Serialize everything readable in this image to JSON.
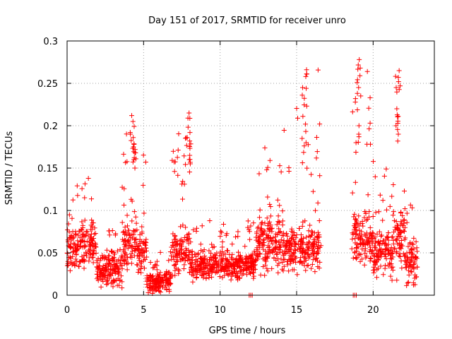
{
  "chart_data": {
    "type": "scatter",
    "title": "Day 151 of 2017, SRMTID for receiver unro",
    "xlabel": "GPS time / hours",
    "ylabel": "SRMTID / TECUs",
    "xlim": [
      0,
      24
    ],
    "ylim": [
      0,
      0.3
    ],
    "x_ticks": [
      0,
      5,
      10,
      15,
      20
    ],
    "x_tick_labels": [
      "0",
      "5",
      "10",
      "15",
      "20"
    ],
    "y_ticks": [
      0,
      0.05,
      0.1,
      0.15,
      0.2,
      0.25,
      0.3
    ],
    "y_tick_labels": [
      "0",
      "0.05",
      "0.1",
      "0.15",
      "0.2",
      "0.25",
      "0.3"
    ],
    "grid": true,
    "marker": "+",
    "color": "#ff0000",
    "series": [
      {
        "name": "SRMTID",
        "segments": [
          {
            "x_start": 0.0,
            "x_end": 0.9,
            "base": 0.055,
            "spread": 0.035,
            "max": 0.148
          },
          {
            "x_start": 0.9,
            "x_end": 1.9,
            "base": 0.06,
            "spread": 0.035,
            "max": 0.14
          },
          {
            "x_start": 1.9,
            "x_end": 3.6,
            "base": 0.03,
            "spread": 0.025,
            "max": 0.08
          },
          {
            "x_start": 3.6,
            "x_end": 4.6,
            "base": 0.06,
            "spread": 0.04,
            "max": 0.212
          },
          {
            "x_start": 4.6,
            "x_end": 5.2,
            "base": 0.05,
            "spread": 0.035,
            "max": 0.166
          },
          {
            "x_start": 5.2,
            "x_end": 6.8,
            "base": 0.015,
            "spread": 0.018,
            "max": 0.06
          },
          {
            "x_start": 6.8,
            "x_end": 8.1,
            "base": 0.05,
            "spread": 0.035,
            "max": 0.215
          },
          {
            "x_start": 8.1,
            "x_end": 12.3,
            "base": 0.035,
            "spread": 0.022,
            "max": 0.09
          },
          {
            "x_start": 12.3,
            "x_end": 14.1,
            "base": 0.06,
            "spread": 0.04,
            "max": 0.176
          },
          {
            "x_start": 14.1,
            "x_end": 16.6,
            "base": 0.055,
            "spread": 0.035,
            "max": 0.266
          },
          {
            "x_start": 18.6,
            "x_end": 20.0,
            "base": 0.065,
            "spread": 0.045,
            "max": 0.278
          },
          {
            "x_start": 20.0,
            "x_end": 21.3,
            "base": 0.05,
            "spread": 0.035,
            "max": 0.17
          },
          {
            "x_start": 21.3,
            "x_end": 22.1,
            "base": 0.065,
            "spread": 0.045,
            "max": 0.265
          },
          {
            "x_start": 22.1,
            "x_end": 22.9,
            "base": 0.035,
            "spread": 0.03,
            "max": 0.11
          }
        ],
        "peaks": [
          {
            "x": 4.3,
            "values": [
              0.212,
              0.205,
              0.19,
              0.186,
              0.178,
              0.175,
              0.172,
              0.168,
              0.16
            ]
          },
          {
            "x": 7.9,
            "values": [
              0.215,
              0.209,
              0.192,
              0.186,
              0.182,
              0.165,
              0.16,
              0.155
            ]
          },
          {
            "x": 15.5,
            "values": [
              0.266,
              0.258,
              0.245,
              0.236,
              0.211,
              0.185,
              0.18
            ]
          },
          {
            "x": 19.0,
            "values": [
              0.278,
              0.268,
              0.259,
              0.245,
              0.232,
              0.2,
              0.19,
              0.18
            ]
          },
          {
            "x": 21.6,
            "values": [
              0.265,
              0.257,
              0.252,
              0.245,
              0.22,
              0.211,
              0.2,
              0.19
            ]
          }
        ],
        "zero_points": [
          11.9,
          12.0,
          12.1,
          18.7,
          18.8,
          18.9
        ]
      }
    ]
  }
}
